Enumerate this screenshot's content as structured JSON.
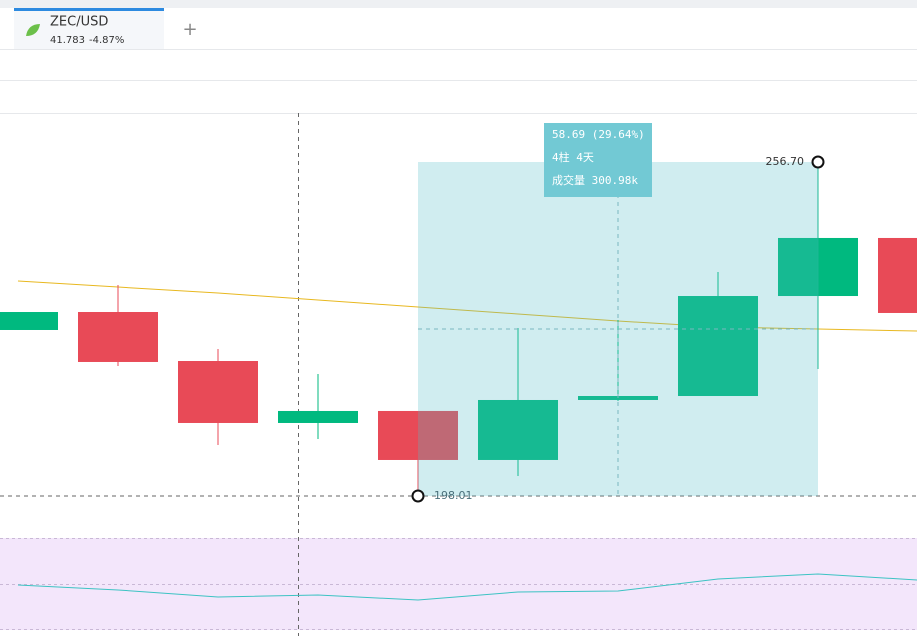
{
  "tab": {
    "symbol": "ZEC/USD",
    "price": "41.783",
    "change": "-4.87%"
  },
  "add_tab": "+",
  "chart_data": {
    "type": "candlestick",
    "categories": [
      null,
      null,
      null,
      null,
      null,
      null,
      null,
      null,
      null,
      null
    ],
    "open": [
      227.18,
      230.34,
      221.73,
      210.84,
      212.95,
      204.34,
      214.88,
      215.58,
      233.15,
      243.35
    ],
    "close": [
      230.34,
      221.56,
      210.84,
      212.95,
      204.34,
      214.88,
      215.58,
      233.15,
      243.35,
      230.17
    ],
    "high": [
      230.34,
      235.09,
      223.84,
      219.45,
      212.95,
      227.53,
      228.94,
      237.37,
      256.7,
      244.75
    ],
    "low": [
      227.18,
      220.85,
      206.97,
      208.03,
      198.01,
      201.52,
      214.7,
      215.58,
      220.33,
      227.71
    ],
    "up_color": "#00b97f",
    "down_color": "#e84a57",
    "ylim": [
      190.98,
      265.31
    ],
    "ma": {
      "color": "#e8b820",
      "values": [
        235.79,
        234.73,
        233.68,
        232.45,
        231.22,
        230.0,
        228.76,
        227.71,
        227.35,
        227.0
      ]
    },
    "indicator": {
      "color": "#3cc3c3",
      "ylim": [
        0,
        100
      ],
      "values": [
        48.9,
        43.5,
        35.9,
        38.0,
        32.6,
        41.3,
        42.4,
        55.4,
        60.9,
        54.3
      ]
    },
    "measure": {
      "high": {
        "value": 256.7,
        "label": "256.70"
      },
      "low": {
        "value": 198.01,
        "label": "198.01"
      },
      "change": "58.69 (29.64%)",
      "bars": "4柱 4天",
      "volume": "成交量 300.98k"
    }
  }
}
